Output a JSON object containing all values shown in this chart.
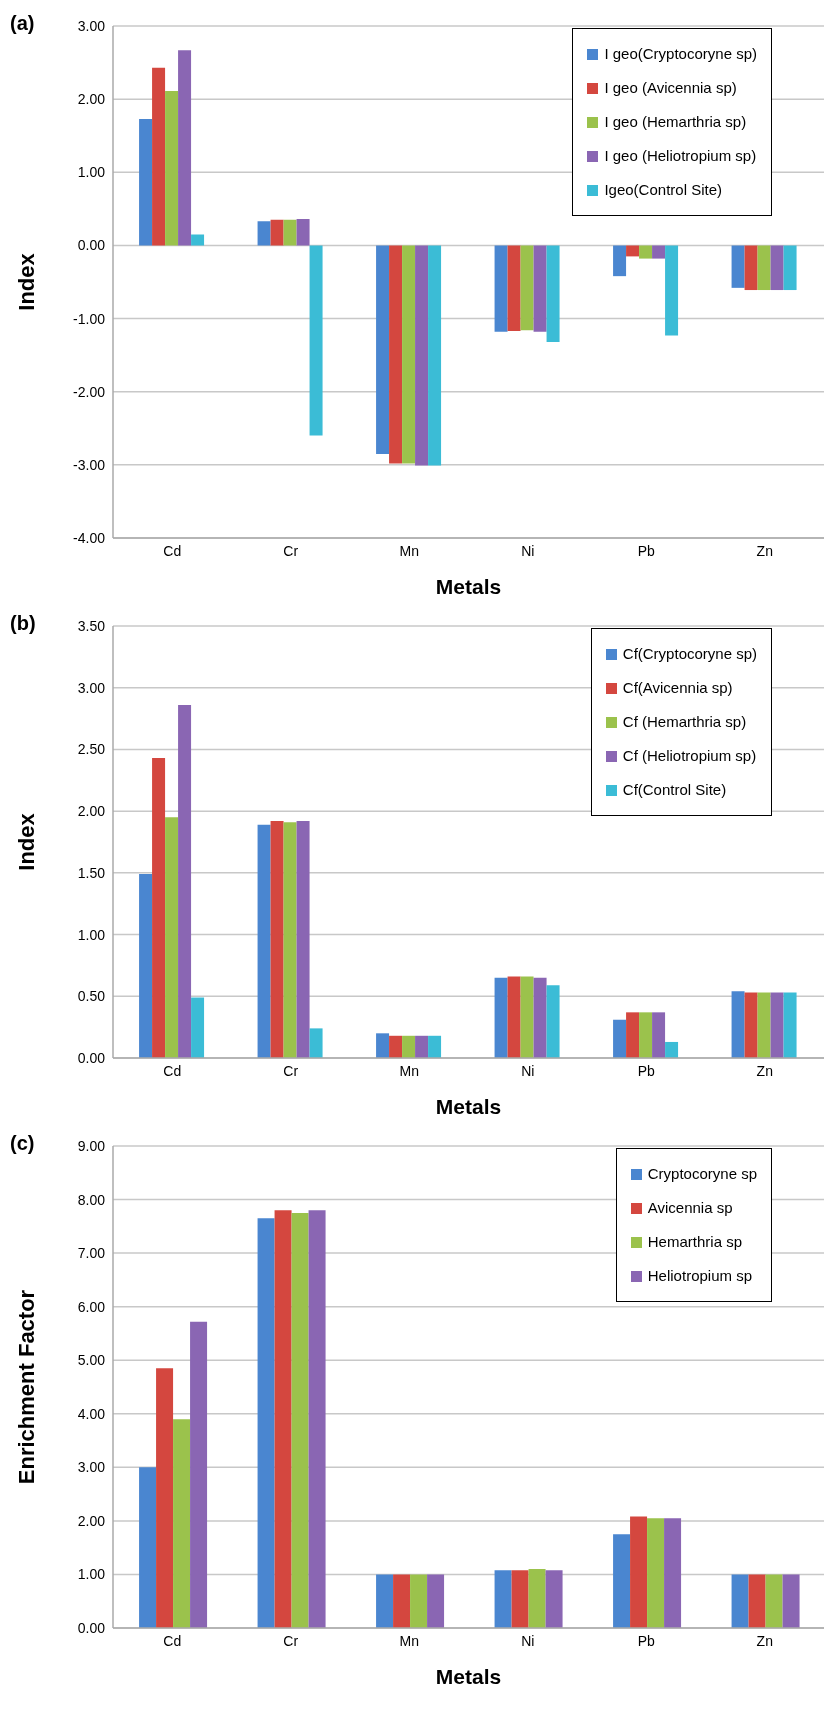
{
  "chart_data": [
    {
      "type": "bar",
      "title": "(a)",
      "xlabel": "Metals",
      "ylabel": "Index",
      "categories": [
        "Cd",
        "Cr",
        "Mn",
        "Ni",
        "Pb",
        "Zn"
      ],
      "series": [
        {
          "name": "I geo(Cryptocoryne sp)",
          "color": "#4a86d0",
          "values": [
            1.73,
            0.33,
            -2.85,
            -1.18,
            -0.42,
            -0.58
          ]
        },
        {
          "name": "I geo (Avicennia sp)",
          "color": "#d4473f",
          "values": [
            2.43,
            0.35,
            -2.98,
            -1.17,
            -0.15,
            -0.61
          ]
        },
        {
          "name": "I geo (Hemarthria sp)",
          "color": "#9bc24c",
          "values": [
            2.11,
            0.35,
            -2.98,
            -1.16,
            -0.18,
            -0.61
          ]
        },
        {
          "name": "I geo (Heliotropium sp)",
          "color": "#8a66b3",
          "values": [
            2.67,
            0.36,
            -3.01,
            -1.18,
            -0.18,
            -0.61
          ]
        },
        {
          "name": "Igeo(Control Site)",
          "color": "#3bbcd6",
          "values": [
            0.15,
            -2.6,
            -3.01,
            -1.32,
            -1.23,
            -0.61
          ]
        }
      ],
      "ylim": [
        -4,
        3
      ],
      "yticks": [
        {
          "value": -4,
          "label": "-4.00"
        },
        {
          "value": -3,
          "label": "-3.00"
        },
        {
          "value": -2,
          "label": "-2.00"
        },
        {
          "value": -1,
          "label": "-1.00"
        },
        {
          "value": 0,
          "label": "0.00"
        },
        {
          "value": 1,
          "label": "1.00"
        },
        {
          "value": 2,
          "label": "2.00"
        },
        {
          "value": 3,
          "label": "3.00"
        }
      ],
      "grid": "y",
      "legend": "top right"
    },
    {
      "type": "bar",
      "title": "(b)",
      "xlabel": "Metals",
      "ylabel": "Index",
      "categories": [
        "Cd",
        "Cr",
        "Mn",
        "Ni",
        "Pb",
        "Zn"
      ],
      "series": [
        {
          "name": "Cf(Cryptocoryne sp)",
          "color": "#4a86d0",
          "values": [
            1.49,
            1.89,
            0.2,
            0.65,
            0.31,
            0.54
          ]
        },
        {
          "name": "Cf(Avicennia sp)",
          "color": "#d4473f",
          "values": [
            2.43,
            1.92,
            0.18,
            0.66,
            0.37,
            0.53
          ]
        },
        {
          "name": "Cf (Hemarthria sp)",
          "color": "#9bc24c",
          "values": [
            1.95,
            1.91,
            0.18,
            0.66,
            0.37,
            0.53
          ]
        },
        {
          "name": "Cf (Heliotropium sp)",
          "color": "#8a66b3",
          "values": [
            2.86,
            1.92,
            0.18,
            0.65,
            0.37,
            0.53
          ]
        },
        {
          "name": "Cf(Control Site)",
          "color": "#3bbcd6",
          "values": [
            0.49,
            0.24,
            0.18,
            0.59,
            0.13,
            0.53
          ]
        }
      ],
      "ylim": [
        0,
        3.5
      ],
      "yticks": [
        {
          "value": 0,
          "label": "0.00"
        },
        {
          "value": 0.5,
          "label": "0.50"
        },
        {
          "value": 1,
          "label": "1.00"
        },
        {
          "value": 1.5,
          "label": "1.50"
        },
        {
          "value": 2,
          "label": "2.00"
        },
        {
          "value": 2.5,
          "label": "2.50"
        },
        {
          "value": 3,
          "label": "3.00"
        },
        {
          "value": 3.5,
          "label": "3.50"
        }
      ],
      "grid": "y",
      "legend": "top right"
    },
    {
      "type": "bar",
      "title": "(c)",
      "xlabel": "Metals",
      "ylabel": "Enrichment Factor",
      "categories": [
        "Cd",
        "Cr",
        "Mn",
        "Ni",
        "Pb",
        "Zn"
      ],
      "series": [
        {
          "name": "Cryptocoryne sp",
          "color": "#4a86d0",
          "values": [
            3.0,
            7.65,
            1.0,
            1.08,
            1.75,
            1.0
          ]
        },
        {
          "name": "Avicennia sp",
          "color": "#d4473f",
          "values": [
            4.85,
            7.8,
            1.0,
            1.08,
            2.08,
            1.0
          ]
        },
        {
          "name": "Hemarthria sp",
          "color": "#9bc24c",
          "values": [
            3.9,
            7.75,
            1.0,
            1.1,
            2.05,
            1.0
          ]
        },
        {
          "name": "Heliotropium sp",
          "color": "#8a66b3",
          "values": [
            5.72,
            7.8,
            1.0,
            1.08,
            2.05,
            1.0
          ]
        }
      ],
      "ylim": [
        0,
        9
      ],
      "yticks": [
        {
          "value": 0,
          "label": "0.00"
        },
        {
          "value": 1,
          "label": "1.00"
        },
        {
          "value": 2,
          "label": "2.00"
        },
        {
          "value": 3,
          "label": "3.00"
        },
        {
          "value": 4,
          "label": "4.00"
        },
        {
          "value": 5,
          "label": "5.00"
        },
        {
          "value": 6,
          "label": "6.00"
        },
        {
          "value": 7,
          "label": "7.00"
        },
        {
          "value": 8,
          "label": "8.00"
        },
        {
          "value": 9,
          "label": "9.00"
        }
      ],
      "grid": "y",
      "legend": "top right"
    }
  ]
}
